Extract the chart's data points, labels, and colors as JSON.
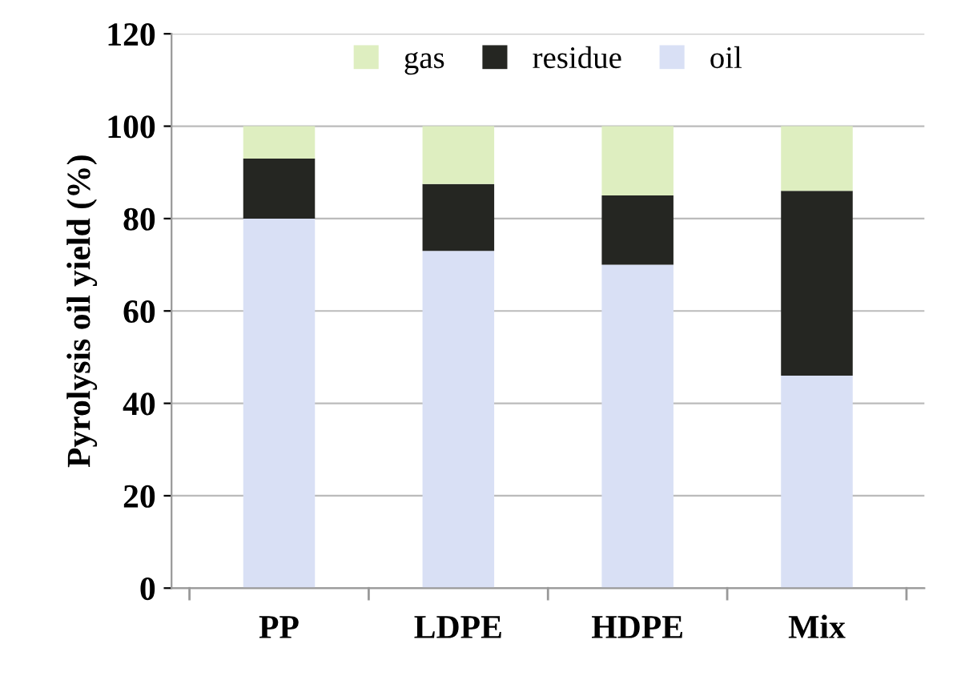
{
  "chart_data": {
    "type": "bar",
    "ylabel": "Pyrolysis oil yield (%)",
    "categories": [
      "PP",
      "LDPE",
      "HDPE",
      "Mix"
    ],
    "series": [
      {
        "name": "oil",
        "color": "#d9e0f5",
        "values": [
          80,
          73,
          70,
          46
        ]
      },
      {
        "name": "residue",
        "color": "#252622",
        "values": [
          13,
          14.5,
          15,
          40
        ]
      },
      {
        "name": "gas",
        "color": "#deeec0",
        "values": [
          7,
          12.5,
          15,
          14
        ]
      }
    ],
    "stacked": true,
    "ylim": [
      0,
      120
    ],
    "yticks": [
      0,
      20,
      40,
      60,
      80,
      100,
      120
    ],
    "grid": "y",
    "legend": "top"
  }
}
